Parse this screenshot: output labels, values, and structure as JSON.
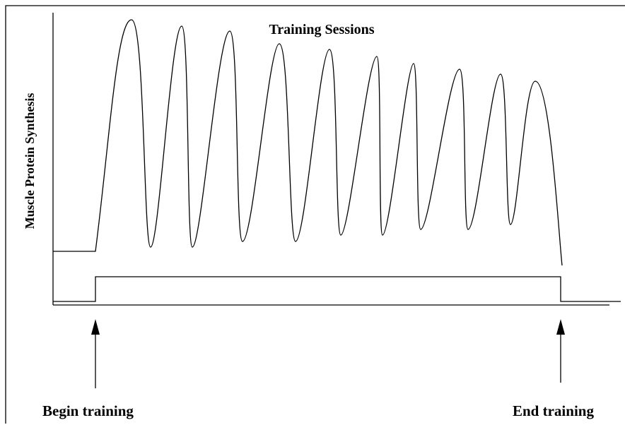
{
  "title": "Training Sessions",
  "y_label": "Muscle Protein Synthesis",
  "annotations": {
    "begin": "Begin training",
    "end": "End training"
  }
}
